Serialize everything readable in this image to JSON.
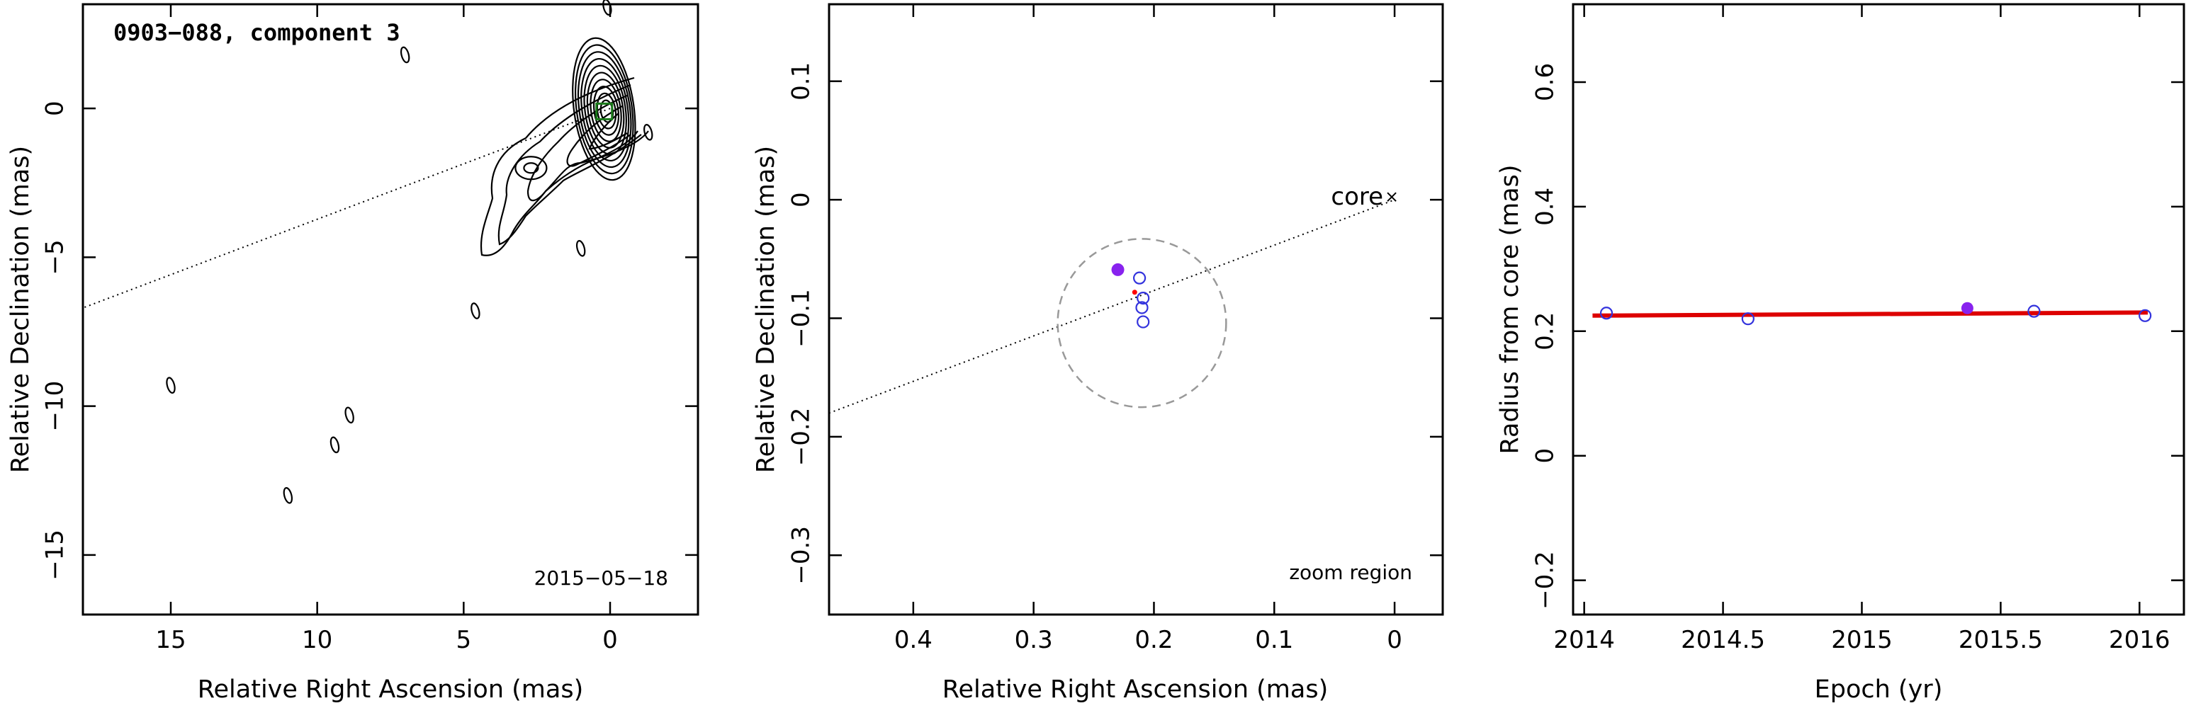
{
  "chart_data": [
    {
      "type": "contour",
      "title": "0903−088, component 3",
      "annotation": "2015−05−18",
      "xlabel": "Relative Right Ascension (mas)",
      "ylabel": "Relative Declination (mas)",
      "xlim": [
        18,
        -3
      ],
      "ylim": [
        -17,
        3.5
      ],
      "x_ticks": [
        15,
        10,
        5,
        0
      ],
      "x_tick_labels": [
        "15",
        "10",
        "5",
        "0"
      ],
      "y_ticks": [
        0,
        -5,
        -10,
        -15
      ],
      "y_tick_labels": [
        "0",
        "−5",
        "−10",
        "−15"
      ],
      "component_marker": {
        "x": 0.2,
        "y": -0.1,
        "color": "#1a7a1a"
      },
      "jet_direction_line": {
        "x": [
          0,
          18
        ],
        "y": [
          0,
          -6.7
        ]
      },
      "contour_levels": 10,
      "isolated_features": [
        {
          "x": 15,
          "y": -9.3
        },
        {
          "x": 11,
          "y": -13
        },
        {
          "x": 9.4,
          "y": -11.3
        },
        {
          "x": 8.9,
          "y": -10.3
        },
        {
          "x": 7.0,
          "y": 1.8
        },
        {
          "x": 4.6,
          "y": -6.8
        },
        {
          "x": 1.0,
          "y": -4.7
        },
        {
          "x": 0.1,
          "y": 3.4
        },
        {
          "x": -1.3,
          "y": -0.8
        }
      ]
    },
    {
      "type": "scatter",
      "xlabel": "Relative Right Ascension (mas)",
      "ylabel": "Relative Declination (mas)",
      "xlim": [
        0.47,
        -0.04
      ],
      "ylim": [
        -0.35,
        0.165
      ],
      "x_ticks": [
        0.4,
        0.3,
        0.2,
        0.1,
        0
      ],
      "x_tick_labels": [
        "0.4",
        "0.3",
        "0.2",
        "0.1",
        "0"
      ],
      "y_ticks": [
        0.1,
        0,
        -0.1,
        -0.2,
        -0.3
      ],
      "y_tick_labels": [
        "0.1",
        "0",
        "−0.1",
        "−0.2",
        "−0.3"
      ],
      "core_label": "core",
      "core_point": {
        "x": 0,
        "y": 0
      },
      "zoom_label": "zoom region",
      "zoom_circle": {
        "cx": 0.21,
        "cy": -0.104,
        "r": 0.07
      },
      "filled_point": {
        "x": 0.23,
        "y": -0.059,
        "color": "#8822ee"
      },
      "open_points": [
        {
          "x": 0.212,
          "y": -0.066
        },
        {
          "x": 0.209,
          "y": -0.083
        },
        {
          "x": 0.21,
          "y": -0.091
        },
        {
          "x": 0.209,
          "y": -0.103
        }
      ],
      "mean_point": {
        "x": 0.216,
        "y": -0.078,
        "color": "#ff0000"
      },
      "open_point_color": "#3333dd",
      "direction_line": {
        "x": [
          0.47,
          0
        ],
        "y": [
          -0.18,
          0
        ]
      }
    },
    {
      "type": "scatter",
      "xlabel": "Epoch (yr)",
      "ylabel": "Radius from core (mas)",
      "xlim": [
        2013.96,
        2016.16
      ],
      "ylim": [
        -0.255,
        0.725
      ],
      "x_ticks": [
        2014,
        2014.5,
        2015,
        2015.5,
        2016
      ],
      "x_tick_labels": [
        "2014",
        "2014.5",
        "2015",
        "2015.5",
        "2016"
      ],
      "y_ticks": [
        -0.2,
        0,
        0.2,
        0.4,
        0.6
      ],
      "y_tick_labels": [
        "−0.2",
        "0",
        "0.2",
        "0.4",
        "0.6"
      ],
      "open_points": [
        {
          "x": 2014.08,
          "y": 0.229
        },
        {
          "x": 2014.59,
          "y": 0.22
        },
        {
          "x": 2015.62,
          "y": 0.232
        },
        {
          "x": 2016.02,
          "y": 0.225
        }
      ],
      "filled_point": {
        "x": 2015.38,
        "y": 0.237
      },
      "fit_line": {
        "x": [
          2014.03,
          2016.03
        ],
        "y": [
          0.225,
          0.23
        ],
        "color": "#dd0000"
      },
      "open_point_color": "#3333dd",
      "filled_point_color": "#8822ee"
    }
  ]
}
